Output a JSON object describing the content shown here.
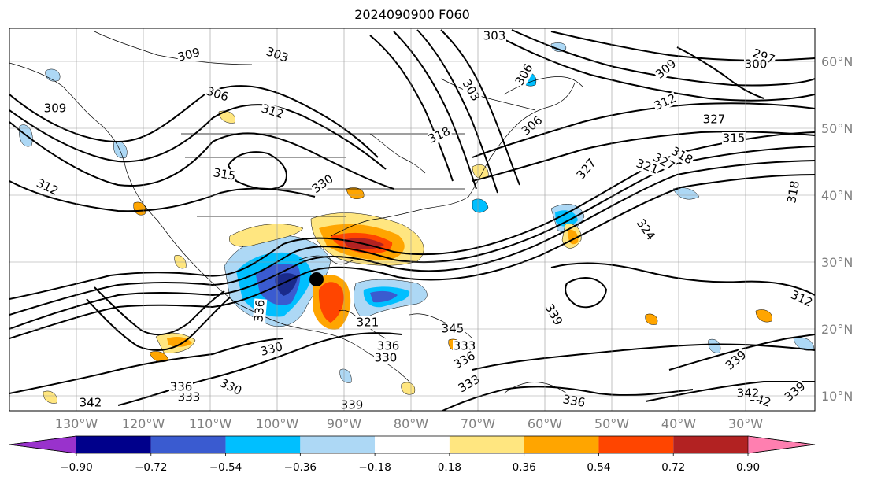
{
  "title": "2024090900 F060",
  "lon_labels": [
    "130°W",
    "120°W",
    "110°W",
    "100°W",
    "90°W",
    "80°W",
    "70°W",
    "60°W",
    "50°W",
    "40°W",
    "30°W"
  ],
  "lat_labels": [
    "60°N",
    "50°N",
    "40°N",
    "30°N",
    "20°N",
    "10°N"
  ],
  "colorbar": {
    "colors": [
      "#9932cc",
      "#00008b",
      "#3a5bd0",
      "#00bfff",
      "#add8f5",
      "#ffffff",
      "#ffe680",
      "#ffa500",
      "#ff4500",
      "#b22222",
      "#ff7fb0"
    ],
    "ticks": [
      "−0.90",
      "−0.72",
      "−0.54",
      "−0.36",
      "−0.18",
      "0.18",
      "0.36",
      "0.54",
      "0.72",
      "0.90"
    ]
  },
  "contour_labels": [
    "309",
    "303",
    "306",
    "312",
    "309",
    "303",
    "318",
    "306",
    "306",
    "303",
    "297",
    "300",
    "309",
    "312",
    "327",
    "315",
    "318",
    "321",
    "318",
    "312",
    "315",
    "330",
    "324",
    "327",
    "312",
    "336",
    "339",
    "336",
    "330",
    "330",
    "333",
    "336",
    "345",
    "330",
    "333",
    "336",
    "339",
    "342",
    "342",
    "339",
    "333",
    "336",
    "342",
    "339",
    "327",
    "321"
  ]
}
